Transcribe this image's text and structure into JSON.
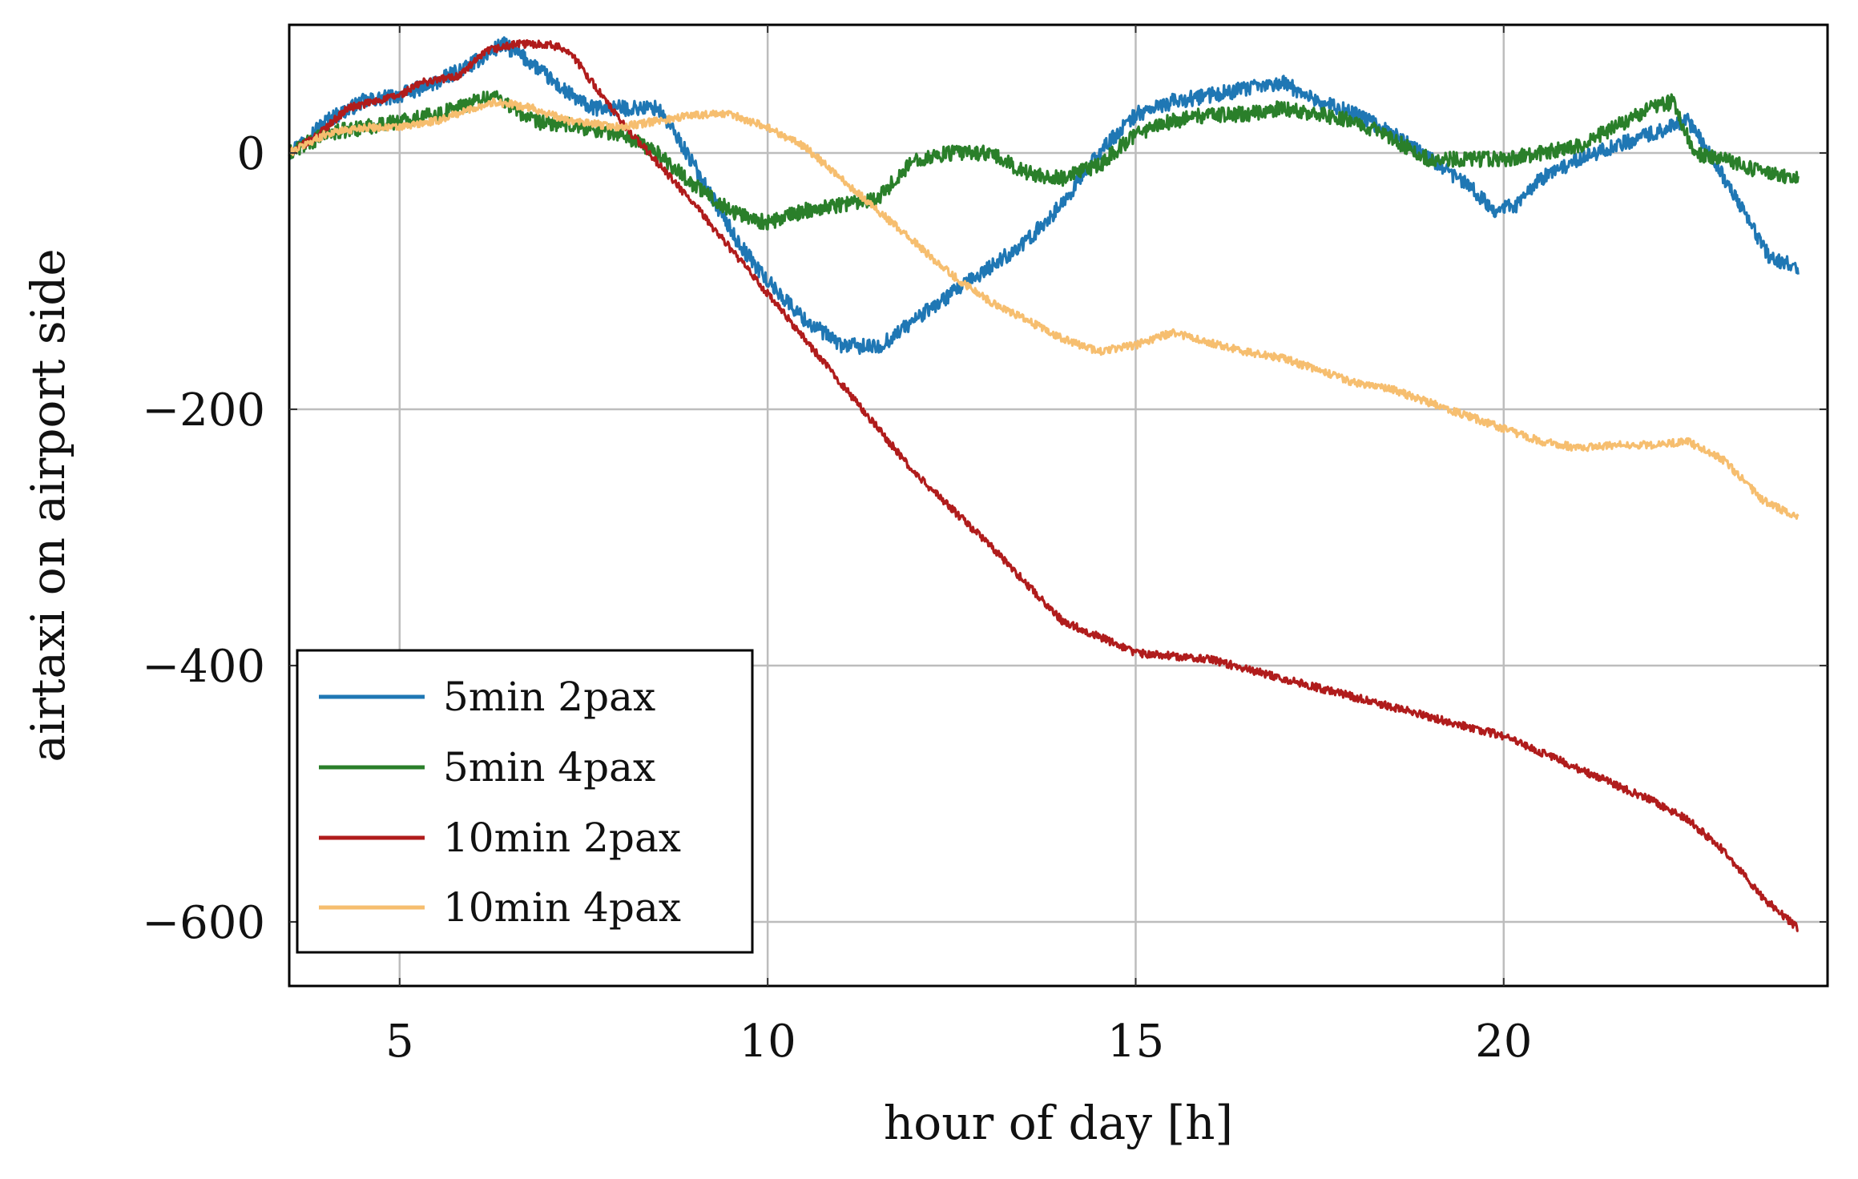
{
  "chart_data": {
    "type": "line",
    "title": "",
    "xlabel": "hour of day [h]",
    "ylabel": "airtaxi on airport side",
    "xlim": [
      3.5,
      24.4
    ],
    "ylim": [
      -650,
      100
    ],
    "xticks": [
      5,
      10,
      15,
      20
    ],
    "yticks": [
      0,
      -200,
      -400,
      -600
    ],
    "xtick_labels": [
      "5",
      "10",
      "15",
      "20"
    ],
    "ytick_labels": [
      "0",
      "−200",
      "−400",
      "−600"
    ],
    "grid": true,
    "legend_position": "bottom-left",
    "series": [
      {
        "name": "5min 2pax",
        "color": "#1f77b4",
        "noise": 6,
        "x": [
          3.5,
          4.0,
          4.5,
          5.0,
          5.5,
          6.0,
          6.4,
          6.8,
          7.2,
          7.6,
          8.0,
          8.5,
          8.8,
          9.2,
          9.6,
          10.0,
          10.5,
          11.0,
          11.5,
          12.0,
          12.5,
          13.0,
          13.5,
          14.0,
          14.5,
          15.0,
          15.5,
          16.0,
          16.5,
          17.0,
          17.5,
          18.0,
          18.5,
          19.0,
          19.5,
          19.9,
          20.2,
          20.5,
          21.0,
          21.5,
          22.0,
          22.5,
          22.8,
          23.2,
          23.6,
          24.0
        ],
        "values": [
          0,
          25,
          40,
          45,
          55,
          70,
          85,
          70,
          50,
          35,
          35,
          35,
          10,
          -30,
          -70,
          -100,
          -130,
          -150,
          -152,
          -130,
          -110,
          -90,
          -70,
          -40,
          0,
          30,
          40,
          45,
          50,
          55,
          40,
          30,
          15,
          -5,
          -25,
          -45,
          -40,
          -20,
          -5,
          5,
          15,
          25,
          0,
          -40,
          -80,
          -90
        ]
      },
      {
        "name": "5min 4pax",
        "color": "#2a7f2a",
        "noise": 6,
        "x": [
          3.5,
          4.0,
          4.5,
          5.0,
          5.5,
          6.0,
          6.3,
          6.8,
          7.5,
          8.0,
          8.5,
          9.0,
          9.5,
          10.0,
          10.5,
          11.0,
          11.5,
          12.0,
          12.5,
          13.0,
          13.5,
          14.0,
          14.5,
          15.0,
          15.5,
          16.0,
          16.5,
          17.0,
          17.5,
          18.0,
          18.5,
          19.0,
          19.5,
          20.0,
          20.5,
          21.0,
          21.5,
          22.0,
          22.3,
          22.6,
          23.0,
          23.5,
          24.0
        ],
        "values": [
          0,
          15,
          20,
          25,
          30,
          40,
          45,
          25,
          20,
          15,
          0,
          -25,
          -45,
          -55,
          -45,
          -40,
          -35,
          -5,
          0,
          0,
          -15,
          -20,
          -10,
          15,
          25,
          30,
          30,
          35,
          30,
          25,
          10,
          -5,
          -5,
          -5,
          0,
          5,
          20,
          35,
          40,
          0,
          -5,
          -15,
          -20
        ]
      },
      {
        "name": "10min 2pax",
        "color": "#b01c1c",
        "noise": 3,
        "x": [
          3.5,
          3.8,
          4.3,
          5.0,
          5.3,
          5.8,
          6.2,
          6.6,
          7.0,
          7.3,
          8.0,
          9.0,
          10.0,
          11.0,
          12.0,
          13.0,
          14.0,
          14.8,
          15.0,
          16.0,
          17.0,
          18.0,
          19.0,
          20.0,
          21.0,
          22.0,
          22.5,
          23.0,
          23.5,
          24.0
        ],
        "values": [
          0,
          10,
          35,
          45,
          55,
          60,
          80,
          85,
          85,
          80,
          25,
          -40,
          -110,
          -180,
          -250,
          -305,
          -365,
          -385,
          -390,
          -395,
          -410,
          -425,
          -440,
          -455,
          -480,
          -505,
          -520,
          -545,
          -580,
          -605
        ]
      },
      {
        "name": "10min 4pax",
        "color": "#f6be6f",
        "noise": 3,
        "x": [
          3.5,
          4.0,
          4.5,
          5.0,
          5.5,
          6.0,
          6.3,
          6.8,
          7.3,
          8.0,
          8.5,
          9.0,
          9.5,
          10.0,
          10.5,
          11.0,
          11.5,
          12.0,
          12.5,
          13.0,
          13.5,
          14.0,
          14.5,
          15.0,
          15.5,
          16.0,
          16.5,
          17.0,
          17.5,
          18.0,
          18.5,
          19.0,
          19.5,
          20.0,
          20.5,
          21.0,
          21.5,
          22.0,
          22.5,
          23.0,
          23.5,
          24.0
        ],
        "values": [
          0,
          15,
          20,
          20,
          25,
          35,
          40,
          35,
          25,
          20,
          25,
          30,
          30,
          20,
          5,
          -20,
          -45,
          -70,
          -95,
          -115,
          -130,
          -145,
          -155,
          -150,
          -140,
          -148,
          -155,
          -160,
          -170,
          -180,
          -185,
          -195,
          -205,
          -215,
          -225,
          -230,
          -228,
          -228,
          -225,
          -240,
          -270,
          -285
        ]
      }
    ]
  }
}
